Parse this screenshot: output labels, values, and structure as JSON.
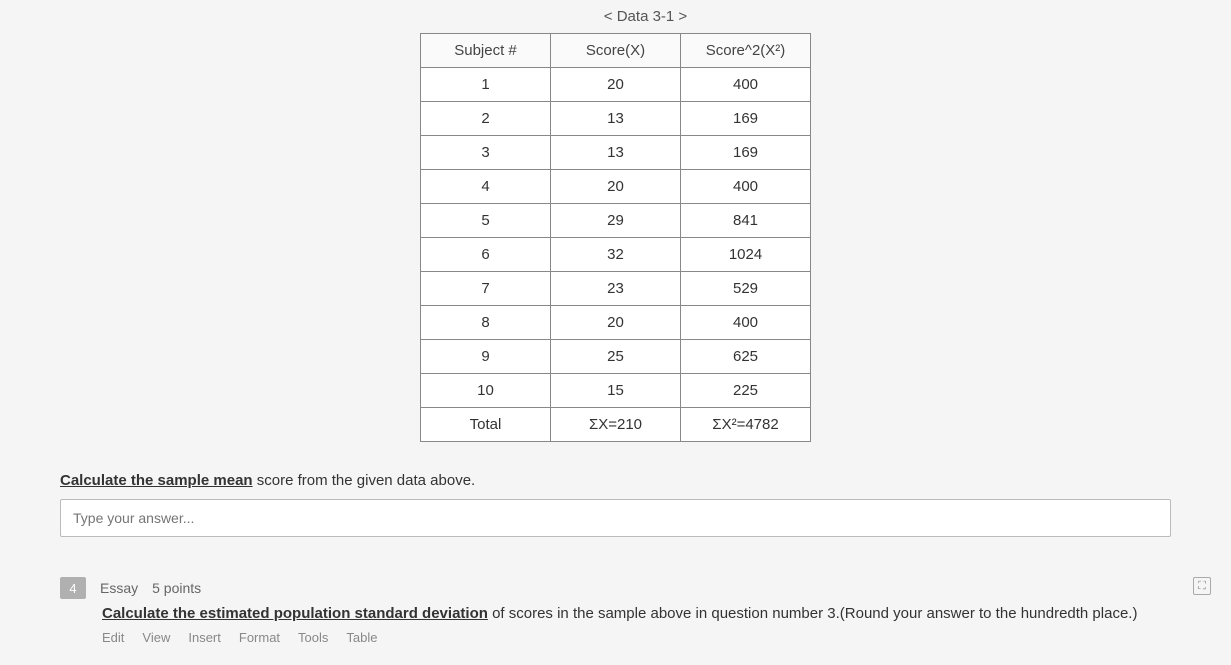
{
  "table": {
    "caption": "< Data 3-1 >",
    "columns": [
      "Subject #",
      "Score(X)",
      "Score^2(X²)"
    ],
    "rows": [
      [
        "1",
        "20",
        "400"
      ],
      [
        "2",
        "13",
        "169"
      ],
      [
        "3",
        "13",
        "169"
      ],
      [
        "4",
        "20",
        "400"
      ],
      [
        "5",
        "29",
        "841"
      ],
      [
        "6",
        "32",
        "1024"
      ],
      [
        "7",
        "23",
        "529"
      ],
      [
        "8",
        "20",
        "400"
      ],
      [
        "9",
        "25",
        "625"
      ],
      [
        "10",
        "15",
        "225"
      ]
    ],
    "total_row": [
      "Total",
      "ΣX=210",
      "ΣX²=4782"
    ]
  },
  "q3": {
    "prompt_underlined": "Calculate the sample mean",
    "prompt_rest": " score from the given data above.",
    "placeholder": "Type your answer..."
  },
  "q4": {
    "number": "4",
    "type": "Essay",
    "points": "5 points",
    "prompt_underlined": "Calculate the estimated population standard deviation",
    "prompt_rest": " of scores in the sample above in question number 3.(Round your answer to the hundredth place.)",
    "menu": [
      "Edit",
      "View",
      "Insert",
      "Format",
      "Tools",
      "Table"
    ]
  }
}
